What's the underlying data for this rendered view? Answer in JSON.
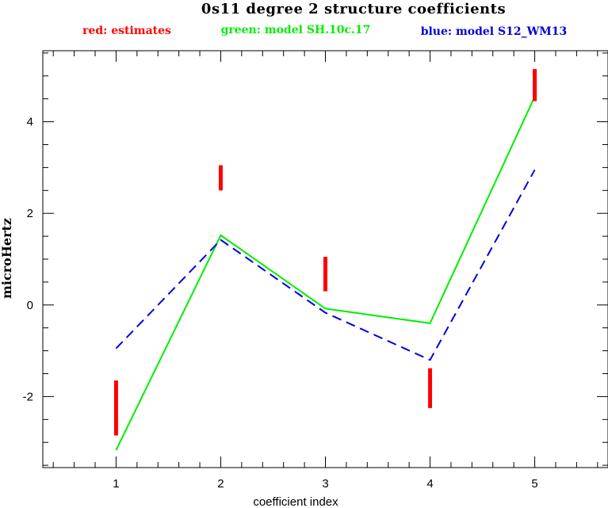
{
  "chart_data": {
    "type": "line",
    "title": "0s11 degree 2 structure coefficients",
    "legend_entries": [
      {
        "text": "red: estimates",
        "color": "#ff0000"
      },
      {
        "text": "green: model SH.10c.17",
        "color": "#00ee00"
      },
      {
        "text": "blue: model S12_WM13",
        "color": "#0000dd"
      }
    ],
    "xlabel": "coefficient index",
    "ylabel": "microHertz",
    "xlim": [
      0.3,
      5.7
    ],
    "ylim": [
      -3.55,
      5.55
    ],
    "x_ticks": [
      1,
      2,
      3,
      4,
      5
    ],
    "x_tick_labels": [
      "1",
      "2",
      "3",
      "4",
      "5"
    ],
    "y_ticks": [
      -2,
      0,
      2,
      4
    ],
    "y_tick_labels": [
      "-2",
      "0",
      "2",
      "4"
    ],
    "y_minor_step": 0.5,
    "x_minor_step": 0.2,
    "estimates": {
      "color": "#ff0000",
      "x": [
        1,
        2,
        3,
        4,
        5
      ],
      "low": [
        -2.85,
        2.5,
        0.3,
        -2.25,
        4.45
      ],
      "high": [
        -1.65,
        3.05,
        1.05,
        -1.38,
        5.15
      ]
    },
    "series": [
      {
        "name": "model SH.10c.17",
        "color": "#00ee00",
        "style": "solid",
        "x": [
          1,
          2,
          3,
          4,
          5
        ],
        "values": [
          -3.17,
          1.52,
          -0.08,
          -0.4,
          4.55
        ]
      },
      {
        "name": "model S12_WM13",
        "color": "#0000dd",
        "style": "dashed",
        "x": [
          1,
          2,
          3,
          4,
          5
        ],
        "values": [
          -0.95,
          1.42,
          -0.17,
          -1.2,
          2.95
        ]
      }
    ]
  }
}
